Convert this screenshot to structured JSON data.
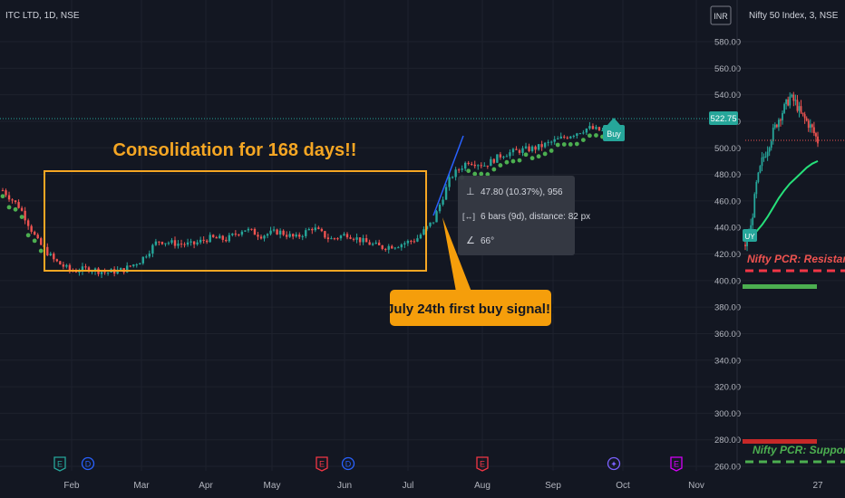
{
  "header": {
    "symbol": "ITC LTD, 1D, NSE",
    "currency_button": "INR",
    "inset_symbol": "Nifty 50 Index, 3, NSE"
  },
  "annotations": {
    "consolidation_title": "Consolidation for 168 days!!",
    "callout": "July 24th first buy signal!!",
    "buy_badge": "Buy",
    "inset_buy_badge": "UY",
    "resistance_label": "Nifty PCR: Resistance",
    "support_label": "Nifty PCR: Support"
  },
  "measure": {
    "price_change": "47.80 (10.37%), 956",
    "bars": "6 bars (9d), distance: 82 px",
    "angle": "66°"
  },
  "price_axis": {
    "ticks": [
      "580.00",
      "560.00",
      "540.00",
      "520.00",
      "500.00",
      "480.00",
      "460.00",
      "440.00",
      "420.00",
      "400.00",
      "380.00",
      "360.00",
      "340.00",
      "320.00",
      "300.00",
      "280.00",
      "260.00"
    ],
    "last_price": "522.75"
  },
  "time_axis": {
    "ticks": [
      "Feb",
      "Mar",
      "Apr",
      "May",
      "Jun",
      "Jul",
      "Aug",
      "Sep",
      "Oct",
      "Nov",
      "27"
    ]
  },
  "event_markers": [
    {
      "letter": "E",
      "type": "earnings-up",
      "color": "#26a69a"
    },
    {
      "letter": "D",
      "type": "dividend",
      "color": "#2962ff"
    },
    {
      "letter": "E",
      "type": "earnings-down",
      "color": "#f23645"
    },
    {
      "letter": "D",
      "type": "dividend",
      "color": "#2962ff"
    },
    {
      "letter": "E",
      "type": "earnings-down",
      "color": "#f23645"
    },
    {
      "letter": "✦",
      "type": "split",
      "color": "#7b61ff"
    },
    {
      "letter": "E",
      "type": "earnings-upcoming",
      "color": "#d500f9"
    }
  ],
  "colors": {
    "background": "#131722",
    "up": "#26a69a",
    "down": "#ef5350",
    "box": "#f5a623",
    "callout_bg": "#f59e0b",
    "dots": "#4caf50",
    "support": "#4caf50",
    "resistance": "#f23645",
    "trendline": "#2962ff"
  },
  "chart_data": {
    "type": "candlestick",
    "title": "",
    "xlabel": "",
    "ylabel": "",
    "ylim": [
      255,
      595
    ],
    "x": [
      "Jan-23",
      "Feb-01",
      "Feb-08",
      "Feb-15",
      "Feb-22",
      "Mar-01",
      "Mar-08",
      "Mar-15",
      "Mar-22",
      "Mar-29",
      "Apr-05",
      "Apr-12",
      "Apr-19",
      "Apr-26",
      "May-03",
      "May-10",
      "May-17",
      "May-24",
      "May-31",
      "Jun-07",
      "Jun-14",
      "Jun-21",
      "Jun-28",
      "Jul-05",
      "Jul-12",
      "Jul-19",
      "Jul-24",
      "Jul-31",
      "Aug-07",
      "Aug-14",
      "Aug-21",
      "Aug-28",
      "Sep-04",
      "Sep-11",
      "Sep-18",
      "Sep-25"
    ],
    "close": [
      468,
      455,
      430,
      415,
      407,
      409,
      406,
      408,
      415,
      430,
      428,
      427,
      432,
      431,
      439,
      434,
      437,
      432,
      440,
      431,
      435,
      429,
      425,
      427,
      431,
      445,
      478,
      490,
      487,
      495,
      498,
      500,
      505,
      510,
      515,
      512
    ],
    "consolidation_range": [
      405,
      472
    ],
    "last_price": 522.75,
    "inset": {
      "title": "Nifty 50 Index, 3, NSE",
      "close": [
        427,
        440,
        472,
        490,
        500,
        512,
        522,
        530,
        538,
        534,
        525,
        520,
        514,
        505
      ],
      "moving_average": [
        432,
        434,
        437,
        442,
        448,
        455,
        462,
        468,
        473,
        477,
        481,
        485,
        488,
        490
      ]
    }
  }
}
